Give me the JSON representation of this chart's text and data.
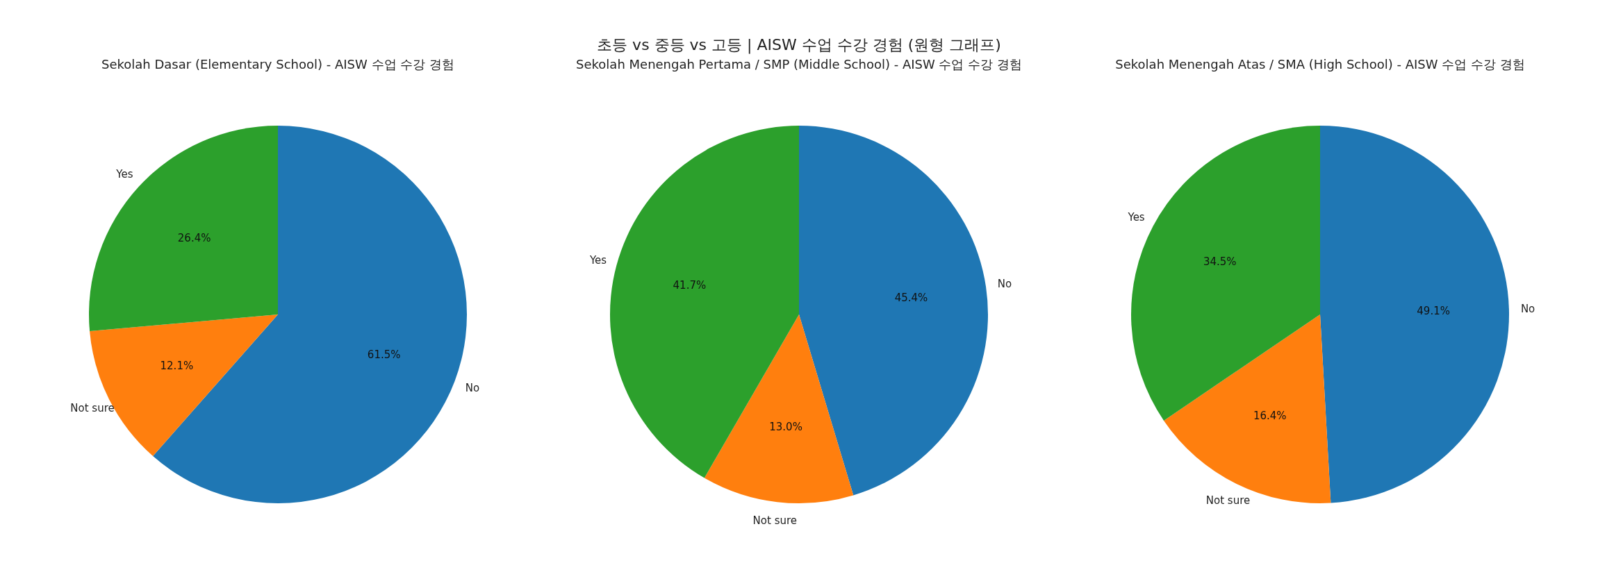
{
  "chart_data": [
    {
      "type": "pie",
      "title": "Sekolah Dasar (Elementary School) - AISW 수업 수강 경험",
      "annotations": [
        "초등 vs 중등 vs 고등 | AISW 수업 수강 경험 (원형 그래프)"
      ],
      "categories": [
        "No",
        "Not sure",
        "Yes"
      ],
      "values": [
        61.5,
        12.1,
        26.4
      ],
      "colors": [
        "#1f77b4",
        "#ff7f0e",
        "#2ca02c"
      ],
      "value_labels": [
        "61.5%",
        "12.1%",
        "26.4%"
      ]
    },
    {
      "type": "pie",
      "title": "Sekolah Menengah Pertama / SMP (Middle School) - AISW 수업 수강 경험",
      "categories": [
        "No",
        "Not sure",
        "Yes"
      ],
      "values": [
        45.4,
        13.0,
        41.7
      ],
      "colors": [
        "#1f77b4",
        "#ff7f0e",
        "#2ca02c"
      ],
      "value_labels": [
        "45.4%",
        "13.0%",
        "41.7%"
      ]
    },
    {
      "type": "pie",
      "title": "Sekolah Menengah Atas / SMA (High School) - AISW 수업 수강 경험",
      "categories": [
        "No",
        "Not sure",
        "Yes"
      ],
      "values": [
        49.1,
        16.4,
        34.5
      ],
      "colors": [
        "#1f77b4",
        "#ff7f0e",
        "#2ca02c"
      ],
      "value_labels": [
        "49.1%",
        "16.4%",
        "34.5%"
      ]
    }
  ]
}
